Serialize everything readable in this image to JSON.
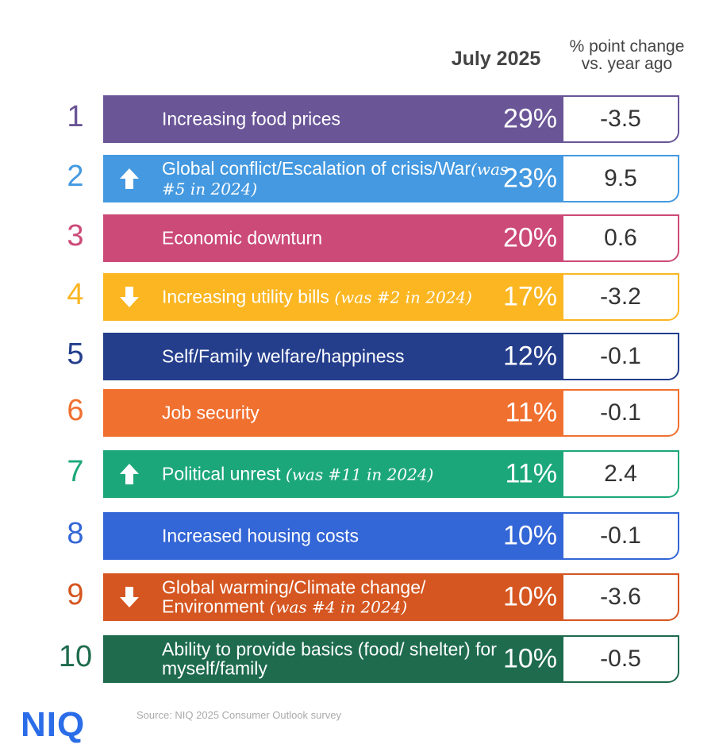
{
  "chart_data": {
    "type": "table",
    "columns": [
      "July 2025",
      "% point change vs. year ago"
    ],
    "rows": [
      {
        "rank": "1",
        "label": "Increasing food prices",
        "note": "",
        "trend": "none",
        "value": "29%",
        "change": "-3.5",
        "color": "#6a5597"
      },
      {
        "rank": "2",
        "label": "Global conflict/Escalation of crisis/War",
        "note": "(was #5 in 2024)",
        "trend": "up",
        "value": "23%",
        "change": "9.5",
        "color": "#4499e0"
      },
      {
        "rank": "3",
        "label": "Economic downturn",
        "note": "",
        "trend": "none",
        "value": "20%",
        "change": "0.6",
        "color": "#cc4a78"
      },
      {
        "rank": "4",
        "label": "Increasing utility bills ",
        "note": "(was #2 in 2024)",
        "trend": "down",
        "value": "17%",
        "change": "-3.2",
        "color": "#fbb622"
      },
      {
        "rank": "5",
        "label": "Self/Family welfare/happiness",
        "note": "",
        "trend": "none",
        "value": "12%",
        "change": "-0.1",
        "color": "#243e8c"
      },
      {
        "rank": "6",
        "label": "Job security",
        "note": "",
        "trend": "none",
        "value": "11%",
        "change": "-0.1",
        "color": "#f07030"
      },
      {
        "rank": "7",
        "label": "Political unrest ",
        "note": "(was #11 in 2024)",
        "trend": "up",
        "value": "11%",
        "change": "2.4",
        "color": "#1ca77a"
      },
      {
        "rank": "8",
        "label": "Increased housing costs",
        "note": "",
        "trend": "none",
        "value": "10%",
        "change": "-0.1",
        "color": "#3366d6"
      },
      {
        "rank": "9",
        "label": "Global warming/Climate change/ Environment ",
        "note": "(was #4 in 2024)",
        "trend": "down",
        "value": "10%",
        "change": "-3.6",
        "color": "#d55620"
      },
      {
        "rank": "10",
        "label": "Ability to provide basics (food/ shelter) for myself/family",
        "note": "",
        "trend": "none",
        "value": "10%",
        "change": "-0.5",
        "color": "#1e6b4e"
      }
    ]
  },
  "header": {
    "month": "July 2025",
    "change_line1": "% point change",
    "change_line2": "vs. year ago"
  },
  "footer": {
    "logo": "NIQ",
    "source": "Source: NIQ 2025 Consumer Outlook survey"
  }
}
